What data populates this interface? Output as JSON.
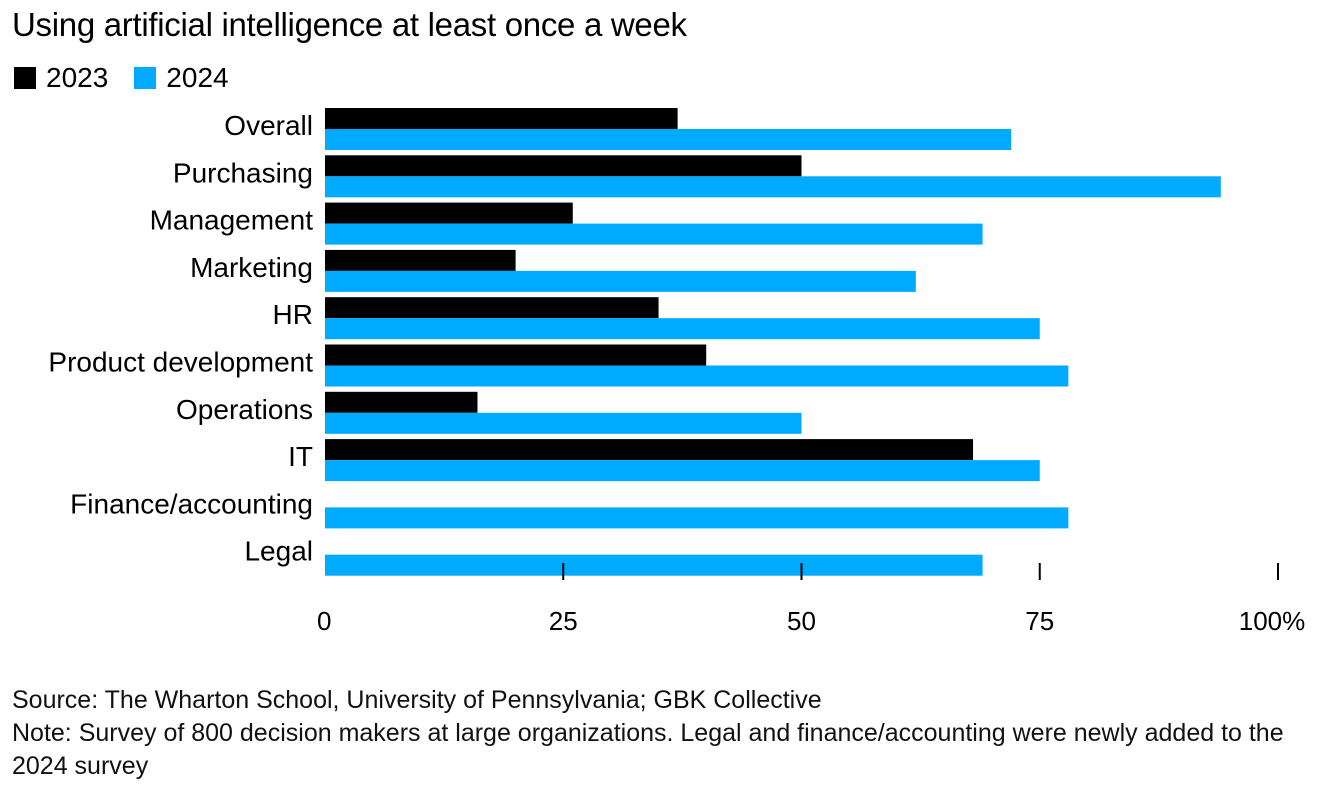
{
  "chart_data": {
    "type": "bar",
    "orientation": "horizontal",
    "title": "Using artificial intelligence at least once a week",
    "xlabel": "",
    "ylabel": "",
    "xlim": [
      0,
      100
    ],
    "grid": false,
    "legend_position": "top-left",
    "categories": [
      "Overall",
      "Purchasing",
      "Management",
      "Marketing",
      "HR",
      "Product development",
      "Operations",
      "IT",
      "Finance/accounting",
      "Legal"
    ],
    "series": [
      {
        "name": "2023",
        "color": "#000000",
        "values": [
          37,
          50,
          26,
          20,
          35,
          40,
          16,
          68,
          null,
          null
        ]
      },
      {
        "name": "2024",
        "color": "#00aaff",
        "values": [
          72,
          94,
          69,
          62,
          75,
          78,
          50,
          75,
          78,
          69
        ]
      }
    ],
    "ticks": [
      {
        "value": 0,
        "label": "0"
      },
      {
        "value": 25,
        "label": "25"
      },
      {
        "value": 50,
        "label": "50"
      },
      {
        "value": 75,
        "label": "75"
      },
      {
        "value": 100,
        "label": "100%"
      }
    ]
  },
  "footer": {
    "source": "Source: The Wharton School, University of Pennsylvania; GBK Collective",
    "note": "Note: Survey of 800 decision makers at large organizations. Legal and finance/accounting were newly added to the 2024 survey"
  }
}
